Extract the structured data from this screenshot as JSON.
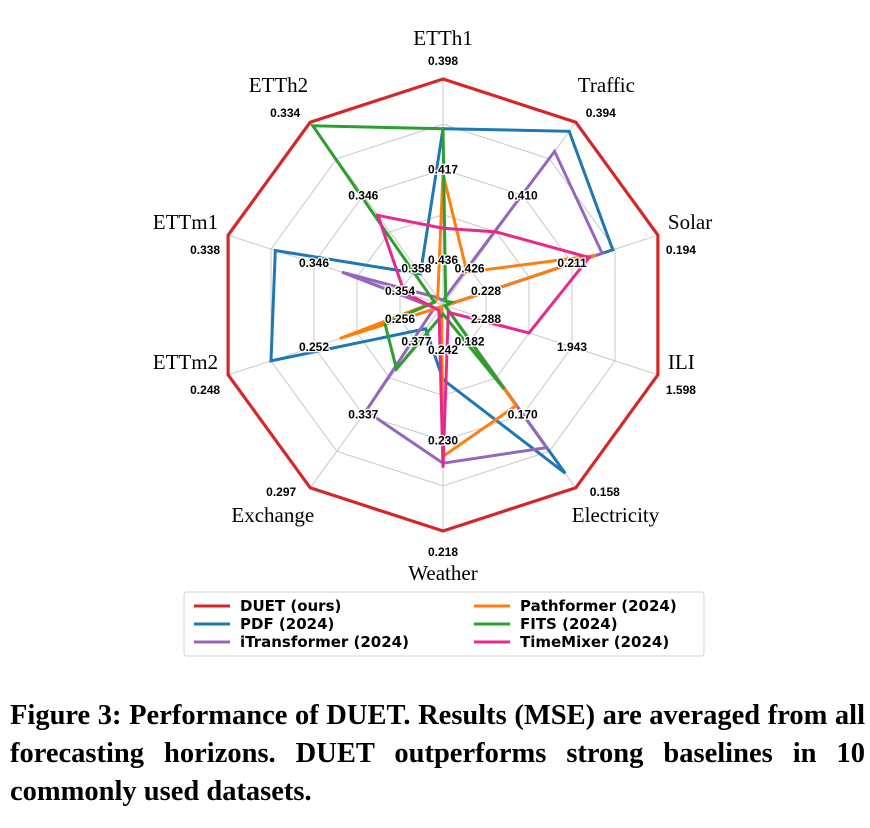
{
  "chart_data": {
    "type": "radar",
    "axes": [
      "ETTh1",
      "Traffic",
      "Solar",
      "ILI",
      "Electricity",
      "Weather",
      "Exchange",
      "ETTm2",
      "ETTm1",
      "ETTh2"
    ],
    "outer_labels": [
      "0.398",
      "0.394",
      "0.194",
      "1.598",
      "0.158",
      "0.218",
      "0.297",
      "0.248",
      "0.338",
      "0.334"
    ],
    "tick_labels": [
      [
        "0.436",
        "0.417"
      ],
      [
        "0.426",
        "0.410"
      ],
      [
        "0.228",
        "0.211"
      ],
      [
        "2.288",
        "1.943"
      ],
      [
        "0.182",
        "0.170"
      ],
      [
        "0.242",
        "0.230"
      ],
      [
        "0.377",
        "0.337"
      ],
      [
        "0.256",
        "0.252"
      ],
      [
        "0.354",
        "0.346"
      ],
      [
        "0.358",
        "0.346"
      ]
    ],
    "grid_levels": 5,
    "grid": true,
    "series": [
      {
        "name": "DUET (ours)",
        "color": "#d62728",
        "values": [
          1,
          1,
          1,
          1,
          1,
          1,
          1,
          1,
          1,
          1
        ]
      },
      {
        "name": "PDF (2024)",
        "color": "#1f77b4",
        "values": [
          0.78,
          0.95,
          0.79,
          0.01,
          0.92,
          0.33,
          0.13,
          0.8,
          0.78,
          0.17
        ]
      },
      {
        "name": "iTransformer (2024)",
        "color": "#9467bd",
        "values": [
          0.02,
          0.84,
          0.74,
          0.01,
          0.78,
          0.7,
          0.58,
          0.04,
          0.47,
          0.04
        ]
      },
      {
        "name": "Pathformer (2024)",
        "color": "#ff7f0e",
        "values": [
          0.58,
          0.18,
          0.71,
          0.01,
          0.55,
          0.67,
          0.01,
          0.48,
          0.04,
          0.04
        ]
      },
      {
        "name": "FITS (2024)",
        "color": "#2ca02c",
        "values": [
          0.78,
          0.02,
          0.04,
          0.01,
          0.46,
          0.04,
          0.35,
          0.27,
          0.04,
          0.98
        ]
      },
      {
        "name": "TimeMixer (2024)",
        "color": "#e7298a",
        "values": [
          0.34,
          0.4,
          0.68,
          0.4,
          0.04,
          0.72,
          0.03,
          0.04,
          0.18,
          0.49
        ]
      }
    ],
    "legend_position": "bottom"
  },
  "caption": "Figure 3: Performance of DUET. Results (MSE) are averaged from all forecasting horizons. DUET outperforms strong baselines in 10 commonly used datasets."
}
